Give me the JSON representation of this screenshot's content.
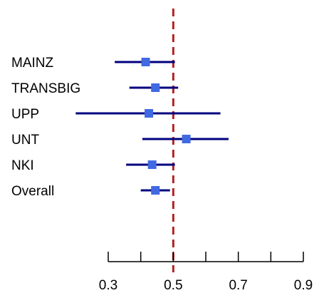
{
  "chart_data": {
    "type": "forest",
    "title": "",
    "xlabel": "",
    "ylabel": "",
    "xlim": [
      0.3,
      0.9
    ],
    "x_ticks": [
      0.3,
      0.4,
      0.5,
      0.6,
      0.7,
      0.8,
      0.9
    ],
    "x_tick_labels": [
      "0.3",
      "0.5",
      "0.7",
      "0.9"
    ],
    "reference_line": 0.5,
    "studies": [
      {
        "label": "MAINZ",
        "estimate": 0.415,
        "lower": 0.32,
        "upper": 0.505
      },
      {
        "label": "TRANSBIG",
        "estimate": 0.445,
        "lower": 0.365,
        "upper": 0.515
      },
      {
        "label": "UPP",
        "estimate": 0.425,
        "lower": 0.2,
        "upper": 0.645
      },
      {
        "label": "UNT",
        "estimate": 0.54,
        "lower": 0.405,
        "upper": 0.67
      },
      {
        "label": "NKI",
        "estimate": 0.435,
        "lower": 0.355,
        "upper": 0.505
      },
      {
        "label": "Overall",
        "estimate": 0.445,
        "lower": 0.4,
        "upper": 0.49
      }
    ],
    "colors": {
      "ci_line": "#00007f",
      "point": "#4169e1",
      "reference_line": "#b22222",
      "axis": "#000000"
    }
  }
}
